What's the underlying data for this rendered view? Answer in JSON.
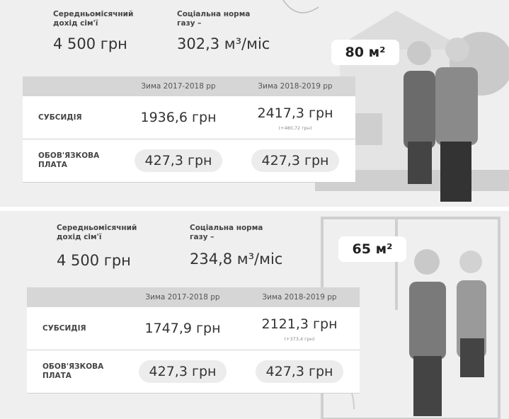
{
  "panels": [
    {
      "income_label": "Середньомісячний дохід сім'ї",
      "income": "4 500 грн",
      "gas_label": "Соціальна норма газу –",
      "gas": "302,3 м³/міс",
      "area": "80 м²",
      "table": {
        "columns": [
          "Зима 2017-2018 рр",
          "Зима 2018-2019 рр"
        ],
        "rows": [
          {
            "label": "СУБСИДІЯ",
            "values": [
              "1936,6 грн",
              "2417,3 грн"
            ],
            "note": "(+480,72 грн)"
          },
          {
            "label": "ОБОВ'ЯЗКОВА ПЛАТА",
            "values": [
              "427,3 грн",
              "427,3 грн"
            ]
          }
        ]
      }
    },
    {
      "income_label": "Середньомісячний дохід сім'ї",
      "income": "4 500 грн",
      "gas_label": "Соціальна норма газу –",
      "gas": "234,8 м³/міс",
      "area": "65 м²",
      "table": {
        "columns": [
          "Зима 2017-2018 рр",
          "Зима 2018-2019 рр"
        ],
        "rows": [
          {
            "label": "СУБСИДІЯ",
            "values": [
              "1747,9 грн",
              "2121,3 грн"
            ],
            "note": "(+373,4 грн)"
          },
          {
            "label": "ОБОВ'ЯЗКОВА ПЛАТА",
            "values": [
              "427,3 грн",
              "427,3 грн"
            ]
          }
        ]
      }
    }
  ]
}
